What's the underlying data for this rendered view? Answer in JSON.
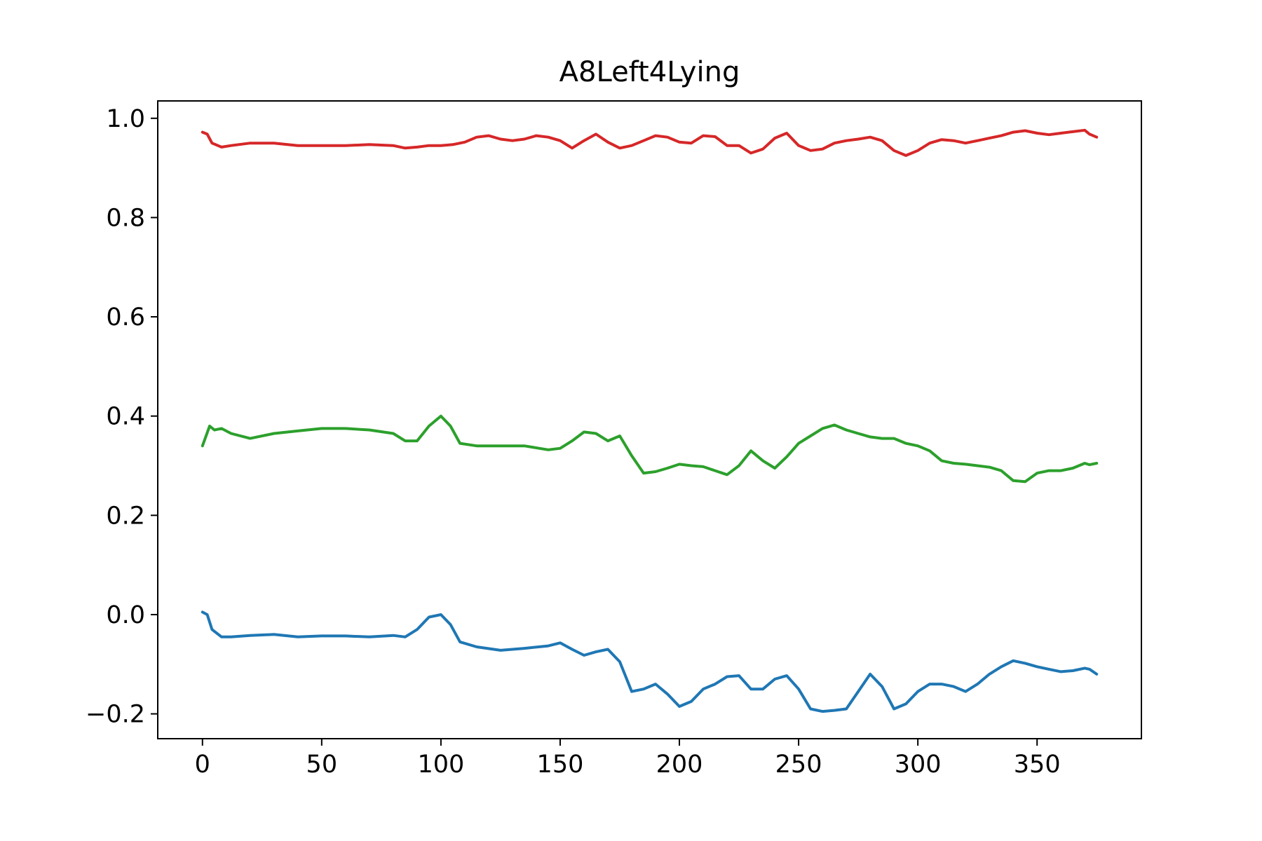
{
  "chart_data": {
    "type": "line",
    "title": "A8Left4Lying",
    "xlabel": "",
    "ylabel": "",
    "xlim": [
      -18.75,
      393.75
    ],
    "ylim": [
      -0.25,
      1.035
    ],
    "x_ticks": [
      0,
      50,
      100,
      150,
      200,
      250,
      300,
      350
    ],
    "x_tick_labels": [
      "0",
      "50",
      "100",
      "150",
      "200",
      "250",
      "300",
      "350"
    ],
    "y_ticks": [
      -0.2,
      0.0,
      0.2,
      0.4,
      0.6,
      0.8,
      1.0
    ],
    "y_tick_labels": [
      "−0.2",
      "0.0",
      "0.2",
      "0.4",
      "0.6",
      "0.8",
      "1.0"
    ],
    "grid": false,
    "series": [
      {
        "color": "#1f77b4",
        "points": [
          [
            0,
            0.005
          ],
          [
            2,
            0.0
          ],
          [
            4,
            -0.03
          ],
          [
            8,
            -0.045
          ],
          [
            12,
            -0.045
          ],
          [
            20,
            -0.042
          ],
          [
            30,
            -0.04
          ],
          [
            40,
            -0.045
          ],
          [
            50,
            -0.043
          ],
          [
            60,
            -0.043
          ],
          [
            70,
            -0.045
          ],
          [
            80,
            -0.042
          ],
          [
            85,
            -0.045
          ],
          [
            90,
            -0.03
          ],
          [
            95,
            -0.005
          ],
          [
            100,
            0.0
          ],
          [
            104,
            -0.02
          ],
          [
            108,
            -0.055
          ],
          [
            115,
            -0.065
          ],
          [
            125,
            -0.072
          ],
          [
            135,
            -0.068
          ],
          [
            145,
            -0.063
          ],
          [
            150,
            -0.057
          ],
          [
            155,
            -0.07
          ],
          [
            160,
            -0.082
          ],
          [
            165,
            -0.075
          ],
          [
            170,
            -0.07
          ],
          [
            175,
            -0.095
          ],
          [
            180,
            -0.155
          ],
          [
            185,
            -0.15
          ],
          [
            190,
            -0.14
          ],
          [
            195,
            -0.16
          ],
          [
            200,
            -0.185
          ],
          [
            205,
            -0.175
          ],
          [
            210,
            -0.15
          ],
          [
            215,
            -0.14
          ],
          [
            220,
            -0.125
          ],
          [
            225,
            -0.123
          ],
          [
            230,
            -0.15
          ],
          [
            235,
            -0.15
          ],
          [
            240,
            -0.13
          ],
          [
            245,
            -0.123
          ],
          [
            250,
            -0.15
          ],
          [
            255,
            -0.19
          ],
          [
            260,
            -0.195
          ],
          [
            265,
            -0.193
          ],
          [
            270,
            -0.19
          ],
          [
            275,
            -0.155
          ],
          [
            280,
            -0.12
          ],
          [
            285,
            -0.145
          ],
          [
            290,
            -0.19
          ],
          [
            295,
            -0.18
          ],
          [
            300,
            -0.155
          ],
          [
            305,
            -0.14
          ],
          [
            310,
            -0.14
          ],
          [
            315,
            -0.145
          ],
          [
            320,
            -0.155
          ],
          [
            325,
            -0.14
          ],
          [
            330,
            -0.12
          ],
          [
            335,
            -0.105
          ],
          [
            340,
            -0.093
          ],
          [
            345,
            -0.098
          ],
          [
            350,
            -0.105
          ],
          [
            355,
            -0.11
          ],
          [
            360,
            -0.115
          ],
          [
            365,
            -0.113
          ],
          [
            370,
            -0.108
          ],
          [
            372,
            -0.11
          ],
          [
            375,
            -0.12
          ]
        ]
      },
      {
        "color": "#2ca02c",
        "points": [
          [
            0,
            0.34
          ],
          [
            3,
            0.38
          ],
          [
            5,
            0.372
          ],
          [
            8,
            0.375
          ],
          [
            12,
            0.365
          ],
          [
            20,
            0.355
          ],
          [
            30,
            0.365
          ],
          [
            40,
            0.37
          ],
          [
            50,
            0.375
          ],
          [
            60,
            0.375
          ],
          [
            70,
            0.372
          ],
          [
            80,
            0.365
          ],
          [
            85,
            0.35
          ],
          [
            90,
            0.35
          ],
          [
            95,
            0.38
          ],
          [
            100,
            0.4
          ],
          [
            104,
            0.38
          ],
          [
            108,
            0.345
          ],
          [
            115,
            0.34
          ],
          [
            125,
            0.34
          ],
          [
            135,
            0.34
          ],
          [
            145,
            0.332
          ],
          [
            150,
            0.335
          ],
          [
            155,
            0.35
          ],
          [
            160,
            0.368
          ],
          [
            165,
            0.365
          ],
          [
            170,
            0.35
          ],
          [
            175,
            0.36
          ],
          [
            180,
            0.32
          ],
          [
            185,
            0.285
          ],
          [
            190,
            0.288
          ],
          [
            195,
            0.295
          ],
          [
            200,
            0.303
          ],
          [
            205,
            0.3
          ],
          [
            210,
            0.298
          ],
          [
            215,
            0.29
          ],
          [
            220,
            0.282
          ],
          [
            225,
            0.3
          ],
          [
            230,
            0.33
          ],
          [
            235,
            0.31
          ],
          [
            240,
            0.295
          ],
          [
            245,
            0.318
          ],
          [
            250,
            0.345
          ],
          [
            255,
            0.36
          ],
          [
            260,
            0.375
          ],
          [
            265,
            0.382
          ],
          [
            270,
            0.372
          ],
          [
            275,
            0.365
          ],
          [
            280,
            0.358
          ],
          [
            285,
            0.355
          ],
          [
            290,
            0.355
          ],
          [
            295,
            0.345
          ],
          [
            300,
            0.34
          ],
          [
            305,
            0.33
          ],
          [
            310,
            0.31
          ],
          [
            315,
            0.305
          ],
          [
            320,
            0.303
          ],
          [
            325,
            0.3
          ],
          [
            330,
            0.297
          ],
          [
            335,
            0.29
          ],
          [
            340,
            0.27
          ],
          [
            345,
            0.268
          ],
          [
            350,
            0.285
          ],
          [
            355,
            0.29
          ],
          [
            360,
            0.29
          ],
          [
            365,
            0.295
          ],
          [
            370,
            0.305
          ],
          [
            372,
            0.302
          ],
          [
            375,
            0.305
          ]
        ]
      },
      {
        "color": "#d62728",
        "points": [
          [
            0,
            0.972
          ],
          [
            2,
            0.968
          ],
          [
            4,
            0.95
          ],
          [
            8,
            0.942
          ],
          [
            12,
            0.945
          ],
          [
            20,
            0.95
          ],
          [
            30,
            0.95
          ],
          [
            40,
            0.945
          ],
          [
            50,
            0.945
          ],
          [
            60,
            0.945
          ],
          [
            70,
            0.947
          ],
          [
            80,
            0.945
          ],
          [
            85,
            0.94
          ],
          [
            90,
            0.942
          ],
          [
            95,
            0.945
          ],
          [
            100,
            0.945
          ],
          [
            105,
            0.947
          ],
          [
            110,
            0.952
          ],
          [
            115,
            0.962
          ],
          [
            120,
            0.965
          ],
          [
            125,
            0.958
          ],
          [
            130,
            0.955
          ],
          [
            135,
            0.958
          ],
          [
            140,
            0.965
          ],
          [
            145,
            0.962
          ],
          [
            150,
            0.955
          ],
          [
            155,
            0.94
          ],
          [
            160,
            0.955
          ],
          [
            165,
            0.968
          ],
          [
            170,
            0.952
          ],
          [
            175,
            0.94
          ],
          [
            180,
            0.945
          ],
          [
            185,
            0.955
          ],
          [
            190,
            0.965
          ],
          [
            195,
            0.962
          ],
          [
            200,
            0.952
          ],
          [
            205,
            0.95
          ],
          [
            210,
            0.965
          ],
          [
            215,
            0.963
          ],
          [
            220,
            0.945
          ],
          [
            225,
            0.945
          ],
          [
            230,
            0.93
          ],
          [
            235,
            0.938
          ],
          [
            240,
            0.96
          ],
          [
            245,
            0.97
          ],
          [
            250,
            0.945
          ],
          [
            255,
            0.935
          ],
          [
            260,
            0.938
          ],
          [
            265,
            0.95
          ],
          [
            270,
            0.955
          ],
          [
            275,
            0.958
          ],
          [
            280,
            0.962
          ],
          [
            285,
            0.955
          ],
          [
            290,
            0.935
          ],
          [
            295,
            0.925
          ],
          [
            300,
            0.935
          ],
          [
            305,
            0.95
          ],
          [
            310,
            0.957
          ],
          [
            315,
            0.955
          ],
          [
            320,
            0.95
          ],
          [
            325,
            0.955
          ],
          [
            330,
            0.96
          ],
          [
            335,
            0.965
          ],
          [
            340,
            0.972
          ],
          [
            345,
            0.975
          ],
          [
            350,
            0.97
          ],
          [
            355,
            0.967
          ],
          [
            360,
            0.97
          ],
          [
            365,
            0.973
          ],
          [
            370,
            0.976
          ],
          [
            372,
            0.968
          ],
          [
            375,
            0.962
          ]
        ]
      }
    ]
  }
}
